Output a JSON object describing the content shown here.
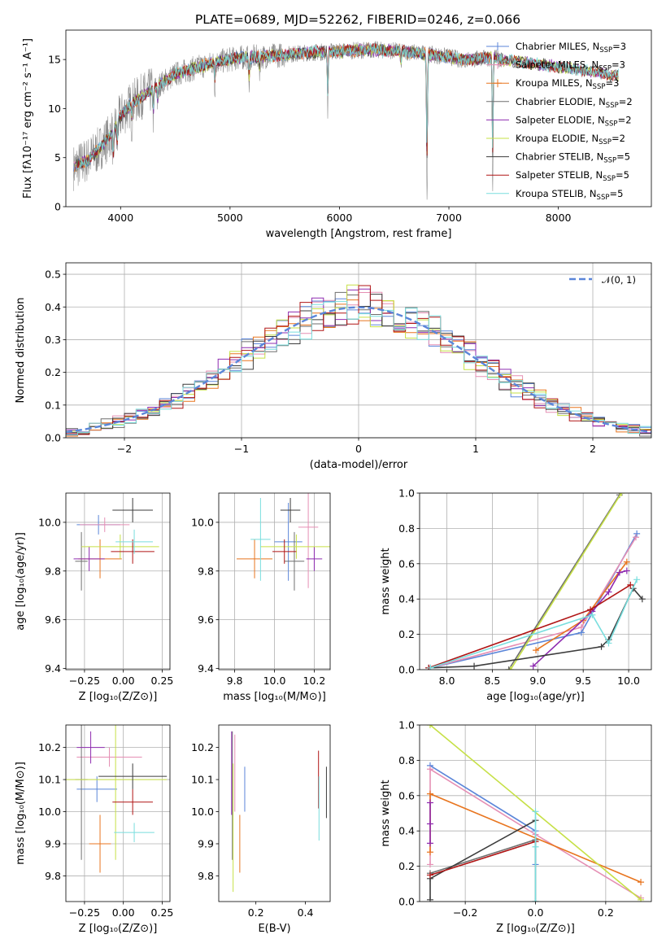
{
  "title": "PLATE=0689, MJD=52262, FIBERID=0246, z=0.066",
  "colors": {
    "Chabrier MILES": "#5b86d9",
    "Salpeter MILES": "#e58fb4",
    "Kroupa MILES": "#e8751f",
    "Chabrier ELODIE": "#6e6e6e",
    "Salpeter ELODIE": "#8e2bb0",
    "Kroupa ELODIE": "#c6e046",
    "Chabrier STELIB": "#3c3c3c",
    "Salpeter STELIB": "#b01515",
    "Kroupa STELIB": "#79dede"
  },
  "legend_sup": {
    "N": "N",
    "sub": "SSP"
  },
  "chart_data": [
    {
      "id": "spectrum",
      "type": "line",
      "xlabel": "wavelength [Angstrom, rest frame]",
      "ylabel": "Flux [fλ10⁻¹⁷ erg cm⁻² s⁻¹ A⁻¹]",
      "xlim": [
        3500,
        8850
      ],
      "ylim": [
        0,
        18
      ],
      "xticks": [
        "4000",
        "5000",
        "6000",
        "7000",
        "8000"
      ],
      "yticks": [
        "0",
        "5",
        "10",
        "15"
      ],
      "legend": [
        {
          "name": "Chabrier MILES",
          "n": "3"
        },
        {
          "name": "Salpeter MILES",
          "n": "3"
        },
        {
          "name": "Kroupa MILES",
          "n": "3"
        },
        {
          "name": "Chabrier ELODIE",
          "n": "2"
        },
        {
          "name": "Salpeter ELODIE",
          "n": "2"
        },
        {
          "name": "Kroupa ELODIE",
          "n": "2"
        },
        {
          "name": "Chabrier STELIB",
          "n": "5"
        },
        {
          "name": "Salpeter STELIB",
          "n": "5"
        },
        {
          "name": "Kroupa STELIB",
          "n": "5"
        }
      ],
      "continuum": {
        "x": [
          3570,
          3700,
          3800,
          3900,
          4000,
          4100,
          4200,
          4300,
          4400,
          4500,
          4700,
          4900,
          5100,
          5300,
          5500,
          5700,
          5900,
          6100,
          6300,
          6500,
          6700,
          6900,
          7000,
          7100,
          7200,
          7300,
          7400,
          7500,
          7700,
          7900,
          8100,
          8300,
          8400,
          8500
        ],
        "y": [
          4.0,
          4.8,
          5.8,
          7.2,
          9.2,
          10.5,
          11.3,
          12.0,
          12.8,
          13.5,
          14.2,
          14.8,
          15.2,
          15.3,
          15.5,
          15.7,
          15.8,
          15.9,
          16.0,
          15.9,
          15.7,
          15.4,
          15.3,
          15.0,
          15.0,
          15.1,
          15.2,
          15.0,
          14.7,
          14.4,
          14.1,
          13.8,
          13.6,
          13.4
        ]
      },
      "data_extent": [
        3570,
        7500
      ],
      "model_extent": [
        3570,
        8550
      ]
    },
    {
      "id": "residuals",
      "type": "area",
      "xlabel": "(data-model)/error",
      "ylabel": "Normed distribution",
      "xlim": [
        -2.5,
        2.5
      ],
      "ylim": [
        0,
        0.535
      ],
      "xticks": [
        "−2",
        "−1",
        "0",
        "1",
        "2"
      ],
      "yticks": [
        "0.0",
        "0.1",
        "0.2",
        "0.3",
        "0.4",
        "0.5"
      ],
      "grid": true,
      "legend": [
        {
          "name": "𝒩(0, 1)"
        }
      ],
      "bins": 50
    },
    {
      "id": "age-vs-Z",
      "type": "scatter",
      "xlabel": "Z [log₁₀(Z/Z⊙)]",
      "ylabel": "age  [log₁₀(age/yr)]",
      "xlim": [
        -0.37,
        0.3
      ],
      "ylim": [
        9.395,
        10.12
      ],
      "xticks": [
        "−0.25",
        "0.00",
        "0.25"
      ],
      "yticks": [
        "9.4",
        "9.6",
        "9.8",
        "10.0"
      ],
      "grid": true,
      "points": [
        {
          "model": "Chabrier MILES",
          "x": -0.16,
          "y": 9.99,
          "xerr": 0.14,
          "yerr": 0.04
        },
        {
          "model": "Salpeter MILES",
          "x": -0.12,
          "y": 9.99,
          "xerr": 0.16,
          "yerr": 0.03
        },
        {
          "model": "Kroupa MILES",
          "x": -0.15,
          "y": 9.85,
          "xerr": 0.14,
          "yerr": 0.08
        },
        {
          "model": "Chabrier ELODIE",
          "x": -0.27,
          "y": 9.84,
          "xerr": 0.04,
          "yerr": 0.12
        },
        {
          "model": "Salpeter ELODIE",
          "x": -0.22,
          "y": 9.85,
          "xerr": 0.1,
          "yerr": 0.05
        },
        {
          "model": "Kroupa ELODIE",
          "x": -0.02,
          "y": 9.9,
          "xerr": 0.25,
          "yerr": 0.05
        },
        {
          "model": "Chabrier STELIB",
          "x": 0.06,
          "y": 10.05,
          "xerr": 0.13,
          "yerr": 0.05
        },
        {
          "model": "Salpeter STELIB",
          "x": 0.06,
          "y": 9.88,
          "xerr": 0.14,
          "yerr": 0.05
        },
        {
          "model": "Kroupa STELIB",
          "x": 0.07,
          "y": 9.92,
          "xerr": 0.12,
          "yerr": 0.05
        }
      ]
    },
    {
      "id": "age-vs-mass",
      "type": "scatter",
      "xlabel": "mass [log₁₀(M/M⊙)]",
      "xlim": [
        9.72,
        10.28
      ],
      "ylim": [
        9.395,
        10.12
      ],
      "xticks": [
        "9.8",
        "10.0",
        "10.2"
      ],
      "yticks": [
        "9.4",
        "9.6",
        "9.8",
        "10.0"
      ],
      "grid": true,
      "points": [
        {
          "model": "Chabrier MILES",
          "x": 10.07,
          "y": 9.92,
          "xerr": 0.07,
          "yerr": 0.16
        },
        {
          "model": "Salpeter MILES",
          "x": 10.17,
          "y": 9.98,
          "xerr": 0.05,
          "yerr": 0.25
        },
        {
          "model": "Kroupa MILES",
          "x": 9.9,
          "y": 9.85,
          "xerr": 0.09,
          "yerr": 0.08
        },
        {
          "model": "Chabrier ELODIE",
          "x": 10.1,
          "y": 9.84,
          "xerr": 0.05,
          "yerr": 0.12
        },
        {
          "model": "Salpeter ELODIE",
          "x": 10.2,
          "y": 9.85,
          "xerr": 0.04,
          "yerr": 0.05
        },
        {
          "model": "Kroupa ELODIE",
          "x": 10.11,
          "y": 9.9,
          "xerr": 0.18,
          "yerr": 0.05
        },
        {
          "model": "Chabrier STELIB",
          "x": 10.08,
          "y": 10.05,
          "xerr": 0.05,
          "yerr": 0.05
        },
        {
          "model": "Salpeter STELIB",
          "x": 10.05,
          "y": 9.88,
          "xerr": 0.06,
          "yerr": 0.05
        },
        {
          "model": "Kroupa STELIB",
          "x": 9.93,
          "y": 9.93,
          "xerr": 0.05,
          "yerr": 0.17
        }
      ]
    },
    {
      "id": "mass-weight-vs-age",
      "type": "line",
      "xlabel": "age  [log₁₀(age/yr)]",
      "ylabel": "mass weight",
      "xlim": [
        7.7,
        10.25
      ],
      "ylim": [
        0,
        1
      ],
      "xticks": [
        "8.0",
        "8.5",
        "9.0",
        "9.5",
        "10.0"
      ],
      "yticks": [
        "0.0",
        "0.2",
        "0.4",
        "0.6",
        "0.8",
        "1.0"
      ],
      "grid": true,
      "series": [
        {
          "model": "Chabrier MILES",
          "x": [
            7.82,
            9.48,
            10.09
          ],
          "y": [
            0.01,
            0.21,
            0.77
          ]
        },
        {
          "model": "Salpeter MILES",
          "x": [
            7.82,
            9.48,
            10.08
          ],
          "y": [
            0.01,
            0.24,
            0.75
          ]
        },
        {
          "model": "Kroupa MILES",
          "x": [
            8.98,
            9.5,
            9.98
          ],
          "y": [
            0.11,
            0.28,
            0.61
          ]
        },
        {
          "model": "Chabrier ELODIE",
          "x": [
            8.68,
            9.9
          ],
          "y": [
            0.0,
            0.99
          ]
        },
        {
          "model": "Salpeter ELODIE",
          "x": [
            8.95,
            9.6,
            9.78,
            9.9,
            9.98
          ],
          "y": [
            0.02,
            0.33,
            0.44,
            0.55,
            0.56
          ]
        },
        {
          "model": "Kroupa ELODIE",
          "x": [
            8.7,
            9.92
          ],
          "y": [
            0.0,
            1.0
          ]
        },
        {
          "model": "Chabrier STELIB",
          "x": [
            7.8,
            8.3,
            9.7,
            9.78,
            10.05,
            10.15
          ],
          "y": [
            0.01,
            0.02,
            0.13,
            0.17,
            0.46,
            0.4
          ]
        },
        {
          "model": "Salpeter STELIB",
          "x": [
            7.8,
            9.58,
            10.02
          ],
          "y": [
            0.01,
            0.34,
            0.48
          ]
        },
        {
          "model": "Kroupa STELIB",
          "x": [
            7.82,
            9.6,
            9.78,
            10.09
          ],
          "y": [
            0.01,
            0.31,
            0.15,
            0.51
          ]
        }
      ]
    },
    {
      "id": "mass-vs-Z",
      "type": "scatter",
      "xlabel": "Z [log₁₀(Z/Z⊙)]",
      "ylabel": "mass [log₁₀(M/M⊙)]",
      "xlim": [
        -0.37,
        0.3
      ],
      "ylim": [
        9.72,
        10.27
      ],
      "xticks": [
        "−0.25",
        "0.00",
        "0.25"
      ],
      "yticks": [
        "9.8",
        "9.9",
        "10.0",
        "10.1",
        "10.2"
      ],
      "grid": true,
      "points": [
        {
          "model": "Chabrier MILES",
          "x": -0.17,
          "y": 10.07,
          "xerr": 0.13,
          "yerr": 0.04
        },
        {
          "model": "Salpeter MILES",
          "x": -0.09,
          "y": 10.17,
          "xerr": 0.21,
          "yerr": 0.03
        },
        {
          "model": "Kroupa MILES",
          "x": -0.15,
          "y": 9.9,
          "xerr": 0.07,
          "yerr": 0.09
        },
        {
          "model": "Chabrier ELODIE",
          "x": -0.27,
          "y": 10.1,
          "xerr": 0.04,
          "yerr": 0.25
        },
        {
          "model": "Salpeter ELODIE",
          "x": -0.21,
          "y": 10.2,
          "xerr": 0.09,
          "yerr": 0.05
        },
        {
          "model": "Kroupa ELODIE",
          "x": -0.05,
          "y": 10.1,
          "xerr": 0.33,
          "yerr": 0.25
        },
        {
          "model": "Chabrier STELIB",
          "x": 0.06,
          "y": 10.11,
          "xerr": 0.22,
          "yerr": 0.04
        },
        {
          "model": "Salpeter STELIB",
          "x": 0.06,
          "y": 10.03,
          "xerr": 0.13,
          "yerr": 0.04
        },
        {
          "model": "Kroupa STELIB",
          "x": 0.07,
          "y": 9.935,
          "xerr": 0.13,
          "yerr": 0.03
        }
      ]
    },
    {
      "id": "mass-vs-ebv",
      "type": "scatter",
      "xlabel": "E(B-V)",
      "xlim": [
        0.05,
        0.5
      ],
      "ylim": [
        9.72,
        10.27
      ],
      "xticks": [
        "0.2",
        "0.4"
      ],
      "yticks": [
        "9.8",
        "9.9",
        "10.0",
        "10.1",
        "10.2"
      ],
      "points": [
        {
          "model": "Chabrier MILES",
          "x": 0.155,
          "y": 10.07,
          "yerr": 0.07
        },
        {
          "model": "Salpeter MILES",
          "x": 0.115,
          "y": 10.12,
          "yerr": 0.12
        },
        {
          "model": "Kroupa MILES",
          "x": 0.135,
          "y": 9.9,
          "yerr": 0.09
        },
        {
          "model": "Chabrier ELODIE",
          "x": 0.105,
          "y": 10.05,
          "yerr": 0.2
        },
        {
          "model": "Salpeter ELODIE",
          "x": 0.102,
          "y": 10.12,
          "yerr": 0.13
        },
        {
          "model": "Kroupa ELODIE",
          "x": 0.108,
          "y": 9.95,
          "yerr": 0.2
        },
        {
          "model": "Chabrier STELIB",
          "x": 0.485,
          "y": 10.06,
          "yerr": 0.08
        },
        {
          "model": "Salpeter STELIB",
          "x": 0.453,
          "y": 10.1,
          "yerr": 0.09
        },
        {
          "model": "Kroupa STELIB",
          "x": 0.455,
          "y": 10.01,
          "yerr": 0.1
        }
      ]
    },
    {
      "id": "mass-weight-vs-Z",
      "type": "line",
      "xlabel": "Z [log₁₀(Z/Z⊙)]",
      "ylabel": "mass weight",
      "xlim": [
        -0.33,
        0.33
      ],
      "ylim": [
        0,
        1
      ],
      "xticks": [
        "−0.2",
        "0.0",
        "0.2"
      ],
      "yticks": [
        "0.0",
        "0.2",
        "0.4",
        "0.6",
        "0.8",
        "1.0"
      ],
      "grid": true,
      "series": [
        {
          "model": "Chabrier MILES",
          "x": [
            -0.3,
            0.0,
            0.0
          ],
          "y": [
            0.77,
            0.4,
            0.21
          ]
        },
        {
          "model": "Salpeter MILES",
          "x": [
            -0.3,
            -0.3,
            0.0,
            0.3
          ],
          "y": [
            0.21,
            0.75,
            0.38,
            0.02
          ]
        },
        {
          "model": "Kroupa MILES",
          "x": [
            -0.3,
            -0.3,
            0.3
          ],
          "y": [
            0.28,
            0.61,
            0.11
          ]
        },
        {
          "model": "Chabrier ELODIE",
          "x": [
            -0.3,
            0.0,
            0.0
          ],
          "y": [
            0.16,
            0.35,
            0.0
          ]
        },
        {
          "model": "Salpeter ELODIE",
          "x": [
            -0.3,
            -0.3,
            -0.3
          ],
          "y": [
            0.33,
            0.44,
            0.56
          ]
        },
        {
          "model": "Kroupa ELODIE",
          "x": [
            -0.3,
            0.3
          ],
          "y": [
            1.0,
            0.01
          ]
        },
        {
          "model": "Chabrier STELIB",
          "x": [
            -0.3,
            -0.3,
            0.0
          ],
          "y": [
            0.01,
            0.13,
            0.46
          ]
        },
        {
          "model": "Salpeter STELIB",
          "x": [
            -0.3,
            0.0
          ],
          "y": [
            0.15,
            0.34
          ]
        },
        {
          "model": "Kroupa STELIB",
          "x": [
            0.0,
            0.0,
            0.0
          ],
          "y": [
            0.0,
            0.51,
            0.31
          ]
        }
      ]
    }
  ]
}
